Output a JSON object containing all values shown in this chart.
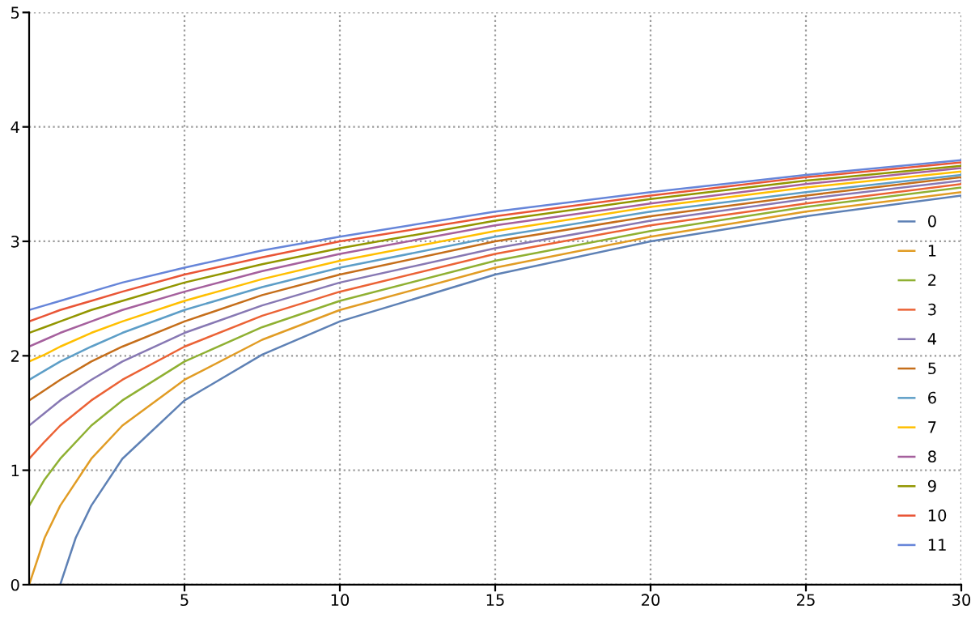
{
  "chart_data": {
    "type": "line",
    "x": [
      0,
      0.5,
      1,
      2,
      3,
      5,
      7.5,
      10,
      15,
      20,
      25,
      30
    ],
    "xlim": [
      0,
      30
    ],
    "ylim": [
      0,
      5
    ],
    "xticks": [
      5,
      10,
      15,
      20,
      25,
      30
    ],
    "yticks": [
      0,
      1,
      2,
      3,
      4,
      5
    ],
    "grid": true,
    "legend": "right",
    "series": [
      {
        "name": "0",
        "color": "#5e81b5",
        "x": [
          1,
          1.5,
          2,
          3,
          5,
          7.5,
          10,
          15,
          20,
          25,
          30
        ],
        "values": [
          0,
          0.41,
          0.69,
          1.1,
          1.61,
          2.01,
          2.3,
          2.71,
          3.0,
          3.22,
          3.4
        ]
      },
      {
        "name": "1",
        "color": "#e19c24",
        "values": [
          0,
          0.41,
          0.69,
          1.1,
          1.39,
          1.79,
          2.14,
          2.4,
          2.77,
          3.04,
          3.26,
          3.43
        ]
      },
      {
        "name": "2",
        "color": "#8fb032",
        "values": [
          0.69,
          0.92,
          1.1,
          1.39,
          1.61,
          1.95,
          2.25,
          2.48,
          2.83,
          3.09,
          3.3,
          3.47
        ]
      },
      {
        "name": "3",
        "color": "#eb6235",
        "values": [
          1.1,
          1.25,
          1.39,
          1.61,
          1.79,
          2.08,
          2.35,
          2.56,
          2.89,
          3.14,
          3.33,
          3.5
        ]
      },
      {
        "name": "4",
        "color": "#8778b3",
        "values": [
          1.39,
          1.5,
          1.61,
          1.79,
          1.95,
          2.2,
          2.44,
          2.64,
          2.94,
          3.18,
          3.37,
          3.53
        ]
      },
      {
        "name": "5",
        "color": "#c56e1a",
        "values": [
          1.61,
          1.7,
          1.79,
          1.95,
          2.08,
          2.3,
          2.53,
          2.71,
          3.0,
          3.22,
          3.4,
          3.56
        ]
      },
      {
        "name": "6",
        "color": "#5d9ec7",
        "values": [
          1.79,
          1.87,
          1.95,
          2.08,
          2.2,
          2.4,
          2.6,
          2.77,
          3.04,
          3.26,
          3.43,
          3.58
        ]
      },
      {
        "name": "7",
        "color": "#ffbf00",
        "values": [
          1.95,
          2.01,
          2.08,
          2.2,
          2.3,
          2.48,
          2.67,
          2.83,
          3.09,
          3.3,
          3.47,
          3.61
        ]
      },
      {
        "name": "8",
        "color": "#a5609d",
        "values": [
          2.08,
          2.14,
          2.2,
          2.3,
          2.4,
          2.56,
          2.74,
          2.89,
          3.14,
          3.33,
          3.5,
          3.64
        ]
      },
      {
        "name": "9",
        "color": "#929600",
        "values": [
          2.2,
          2.25,
          2.3,
          2.4,
          2.48,
          2.64,
          2.8,
          2.94,
          3.18,
          3.37,
          3.53,
          3.66
        ]
      },
      {
        "name": "10",
        "color": "#e95536",
        "values": [
          2.3,
          2.35,
          2.4,
          2.48,
          2.56,
          2.71,
          2.86,
          3.0,
          3.22,
          3.4,
          3.56,
          3.69
        ]
      },
      {
        "name": "11",
        "color": "#6685d9",
        "values": [
          2.4,
          2.44,
          2.48,
          2.56,
          2.64,
          2.77,
          2.92,
          3.04,
          3.26,
          3.43,
          3.58,
          3.71
        ]
      }
    ]
  }
}
